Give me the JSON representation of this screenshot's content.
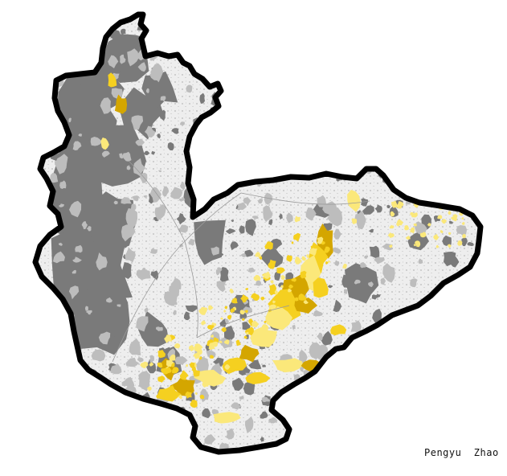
{
  "map": {
    "author_credit": "Pengyu  Zhao",
    "colors": {
      "background": "#ffffff",
      "outline": "#000000",
      "base_fill": "#f2f2f2",
      "dark_patch": "#7a7a7a",
      "mid_patch": "#bdbdbd",
      "yellow_patch": "#f5d020",
      "yellow_light": "#fbe87a",
      "yellow_dark": "#d4a600"
    }
  }
}
